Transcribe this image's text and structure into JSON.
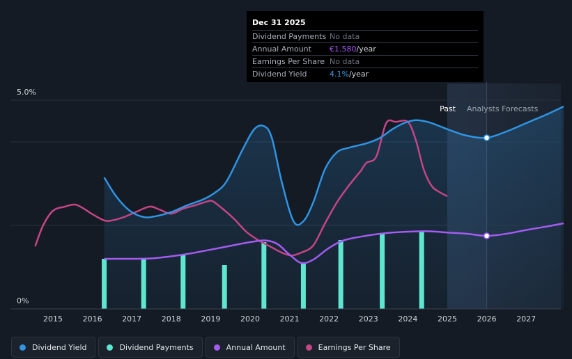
{
  "tooltip": {
    "date": "Dec 31 2025",
    "rows": [
      {
        "label": "Dividend Payments",
        "value": "No data",
        "unit": "",
        "color": "#6b7280"
      },
      {
        "label": "Annual Amount",
        "value": "€1.580",
        "unit": "/year",
        "color": "#a855f7"
      },
      {
        "label": "Earnings Per Share",
        "value": "No data",
        "unit": "",
        "color": "#6b7280"
      },
      {
        "label": "Dividend Yield",
        "value": "4.1%",
        "unit": "/year",
        "color": "#3b9ce6"
      }
    ]
  },
  "sections": {
    "past": "Past",
    "forecast": "Analysts Forecasts"
  },
  "legend": [
    {
      "label": "Dividend Yield",
      "color": "#2f94e3"
    },
    {
      "label": "Dividend Payments",
      "color": "#5ee6d0"
    },
    {
      "label": "Annual Amount",
      "color": "#a45cf0"
    },
    {
      "label": "Earnings Per Share",
      "color": "#c54586"
    }
  ],
  "colors": {
    "yield": "#2f94e3",
    "payments": "#5ee6d0",
    "annual": "#a45cf0",
    "eps": "#c54586",
    "grid": "#2a313c"
  },
  "chart_data": {
    "type": "line",
    "x_range": [
      2014.55,
      2027.95
    ],
    "y_range_percent": [
      0,
      5.0
    ],
    "y_tick_labels": [
      "5.0%",
      "0%"
    ],
    "x_ticks": [
      2015,
      2016,
      2017,
      2018,
      2019,
      2020,
      2021,
      2022,
      2023,
      2024,
      2025,
      2026,
      2027
    ],
    "x_tick_labels": [
      "2015",
      "2016",
      "2017",
      "2018",
      "2019",
      "2020",
      "2021",
      "2022",
      "2023",
      "2024",
      "2025",
      "2026",
      "2027"
    ],
    "past_end": 2025.0,
    "highlight_x": 2026.0,
    "series": [
      {
        "name": "Dividend Yield",
        "unit": "%",
        "x": [
          2016.3,
          2016.6,
          2016.95,
          2017.3,
          2017.6,
          2018.0,
          2018.4,
          2018.8,
          2019.1,
          2019.4,
          2019.8,
          2020.1,
          2020.35,
          2020.55,
          2020.8,
          2021.1,
          2021.35,
          2021.6,
          2021.9,
          2022.2,
          2022.5,
          2022.8,
          2023.0,
          2023.3,
          2023.6,
          2023.9,
          2024.2,
          2024.5,
          2024.8,
          2025.1,
          2025.5,
          2026.0,
          2026.5,
          2027.0,
          2027.5,
          2027.95
        ],
        "values": [
          3.15,
          2.7,
          2.35,
          2.2,
          2.22,
          2.32,
          2.48,
          2.62,
          2.78,
          3.05,
          3.8,
          4.3,
          4.38,
          4.1,
          3.05,
          2.1,
          2.1,
          2.55,
          3.35,
          3.75,
          3.86,
          3.93,
          3.98,
          4.1,
          4.3,
          4.45,
          4.52,
          4.48,
          4.38,
          4.27,
          4.15,
          4.1,
          4.25,
          4.45,
          4.65,
          4.85
        ]
      },
      {
        "name": "Annual Amount",
        "unit": "%-scaled",
        "x": [
          2016.3,
          2017.0,
          2017.5,
          2018.0,
          2018.5,
          2019.0,
          2019.5,
          2020.0,
          2020.4,
          2020.7,
          2021.0,
          2021.3,
          2021.6,
          2022.0,
          2022.4,
          2023.0,
          2023.5,
          2024.0,
          2024.5,
          2025.0,
          2025.5,
          2026.0,
          2026.5,
          2027.0,
          2027.5,
          2027.95
        ],
        "values": [
          1.2,
          1.2,
          1.21,
          1.26,
          1.33,
          1.42,
          1.51,
          1.6,
          1.64,
          1.55,
          1.3,
          1.1,
          1.18,
          1.46,
          1.65,
          1.76,
          1.82,
          1.85,
          1.86,
          1.83,
          1.8,
          1.75,
          1.8,
          1.89,
          1.97,
          2.05
        ]
      },
      {
        "name": "Earnings Per Share",
        "unit": "%-scaled",
        "x": [
          2014.55,
          2014.75,
          2015.0,
          2015.3,
          2015.55,
          2015.75,
          2016.0,
          2016.3,
          2016.5,
          2016.8,
          2017.1,
          2017.45,
          2017.7,
          2018.0,
          2018.3,
          2018.6,
          2018.9,
          2019.05,
          2019.3,
          2019.6,
          2019.9,
          2020.2,
          2020.5,
          2020.8,
          2021.05,
          2021.3,
          2021.6,
          2021.9,
          2022.2,
          2022.5,
          2022.8,
          2022.95,
          2023.2,
          2023.45,
          2023.7,
          2024.0,
          2024.2,
          2024.4,
          2024.6,
          2024.8,
          2025.0
        ],
        "values": [
          1.5,
          2.0,
          2.35,
          2.45,
          2.5,
          2.42,
          2.27,
          2.12,
          2.12,
          2.2,
          2.32,
          2.45,
          2.38,
          2.28,
          2.4,
          2.48,
          2.57,
          2.58,
          2.4,
          2.15,
          1.85,
          1.65,
          1.5,
          1.35,
          1.28,
          1.35,
          1.52,
          2.05,
          2.55,
          2.95,
          3.3,
          3.5,
          3.65,
          4.45,
          4.48,
          4.48,
          4.05,
          3.35,
          2.95,
          2.8,
          2.7
        ]
      },
      {
        "name": "Dividend Payments",
        "type": "bar",
        "unit": "%-scaled",
        "x": [
          2016.3,
          2017.3,
          2018.3,
          2019.35,
          2020.35,
          2021.35,
          2022.3,
          2023.35,
          2024.35
        ],
        "values": [
          1.2,
          1.2,
          1.3,
          1.05,
          1.6,
          1.1,
          1.65,
          1.82,
          1.86
        ]
      }
    ],
    "highlight_points": [
      {
        "series": "Dividend Yield",
        "x": 2026.0,
        "value": 4.1
      },
      {
        "series": "Annual Amount",
        "x": 2026.0,
        "value": 1.75
      }
    ]
  }
}
